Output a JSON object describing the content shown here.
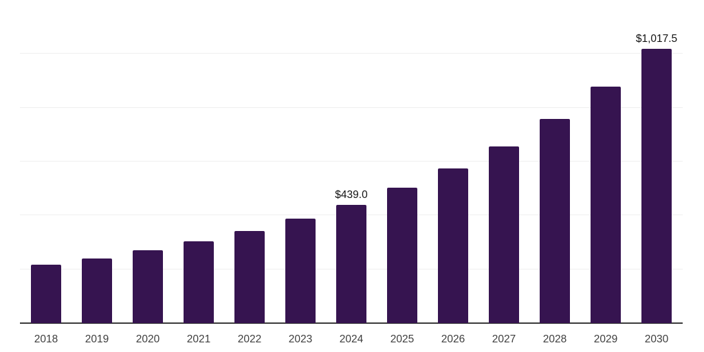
{
  "chart_data": {
    "type": "bar",
    "categories": [
      "2018",
      "2019",
      "2020",
      "2021",
      "2022",
      "2023",
      "2024",
      "2025",
      "2026",
      "2027",
      "2028",
      "2029",
      "2030"
    ],
    "values": [
      217,
      241,
      270,
      303,
      342,
      387,
      439,
      504,
      575,
      657,
      759,
      878,
      1017.5
    ],
    "labeled_points": [
      {
        "category": "2024",
        "label": "$439.0"
      },
      {
        "category": "2030",
        "label": "$1,017.5"
      }
    ],
    "ylim": [
      0,
      1200
    ],
    "gridline_step": 200,
    "grid": true,
    "legend": "none",
    "y_axis_labels_visible": false,
    "colors": {
      "bar": "#361450",
      "gridline": "#efefef",
      "axis": "#3a3a3a",
      "data_label": "#111111",
      "tick_label": "#3d3d3d",
      "background": "#ffffff"
    }
  }
}
